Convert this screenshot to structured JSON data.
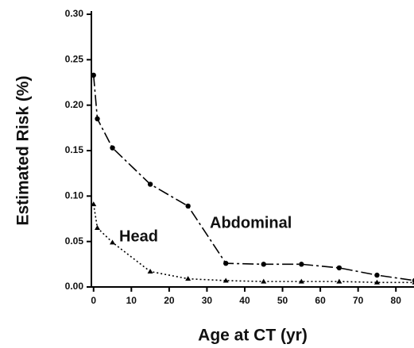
{
  "chart_data": {
    "type": "line",
    "xlabel": "Age at CT (yr)",
    "ylabel": "Estimated Risk (%)",
    "x": [
      0,
      1,
      5,
      15,
      25,
      35,
      45,
      55,
      65,
      75,
      85
    ],
    "series": [
      {
        "name": "Abdominal",
        "color": "#000000",
        "line_style": "dashed",
        "marker": "circle",
        "values": [
          0.233,
          0.185,
          0.153,
          0.113,
          0.089,
          0.026,
          0.025,
          0.025,
          0.021,
          0.013,
          0.007
        ]
      },
      {
        "name": "Head",
        "color": "#000000",
        "line_style": "dotted",
        "marker": "triangle",
        "values": [
          0.091,
          0.065,
          0.049,
          0.017,
          0.009,
          0.007,
          0.006,
          0.006,
          0.006,
          0.005,
          0.005
        ]
      }
    ],
    "xlim": [
      -1,
      85
    ],
    "xticks": [
      0,
      10,
      20,
      30,
      40,
      50,
      60,
      70,
      80
    ],
    "ylim": [
      0,
      0.3
    ],
    "yticks": [
      {
        "value": 0,
        "label": "0.00"
      },
      0.05,
      {
        "value": 0.1,
        "label": "0.10"
      },
      0.15,
      {
        "value": 0.2,
        "label": "0.20"
      },
      0.25,
      {
        "value": 0.3,
        "label": "0.30"
      }
    ],
    "grid": false
  }
}
